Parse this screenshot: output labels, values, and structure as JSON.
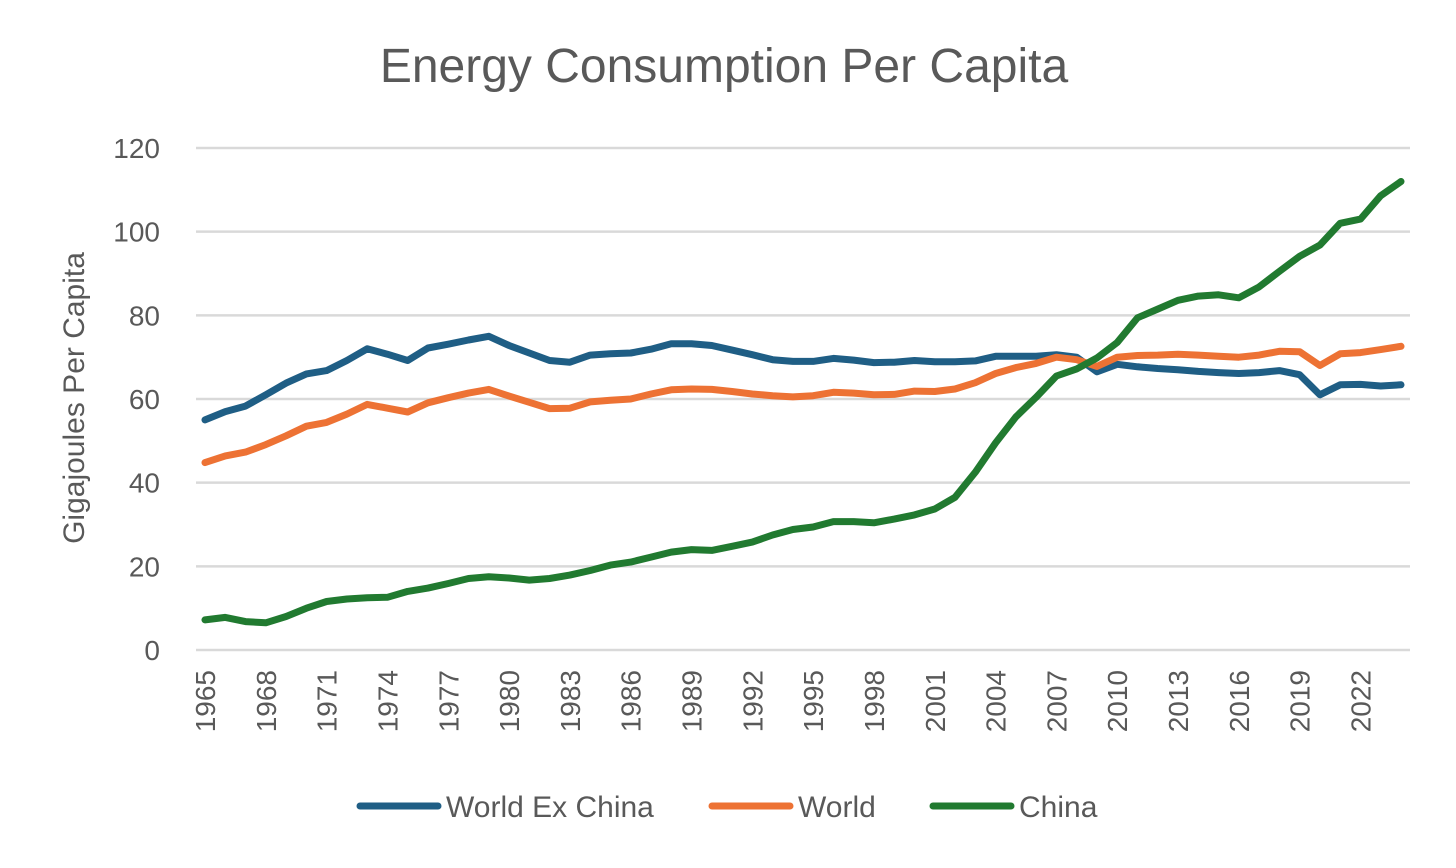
{
  "chart_data": {
    "type": "line",
    "title": "Energy Consumption Per Capita",
    "xlabel": "",
    "ylabel": "Gigajoules Per Capita",
    "ylim": [
      0,
      120
    ],
    "yticks": [
      "0",
      "20",
      "40",
      "60",
      "80",
      "100",
      "120"
    ],
    "grid": true,
    "legend_position": "bottom",
    "x": [
      1965,
      1966,
      1967,
      1968,
      1969,
      1970,
      1971,
      1972,
      1973,
      1974,
      1975,
      1976,
      1977,
      1978,
      1979,
      1980,
      1981,
      1982,
      1983,
      1984,
      1985,
      1986,
      1987,
      1988,
      1989,
      1990,
      1991,
      1992,
      1993,
      1994,
      1995,
      1996,
      1997,
      1998,
      1999,
      2000,
      2001,
      2002,
      2003,
      2004,
      2005,
      2006,
      2007,
      2008,
      2009,
      2010,
      2011,
      2012,
      2013,
      2014,
      2015,
      2016,
      2017,
      2018,
      2019,
      2020,
      2021,
      2022,
      2023,
      2024
    ],
    "xticks": [
      "1965",
      "1968",
      "1971",
      "1974",
      "1977",
      "1980",
      "1983",
      "1986",
      "1989",
      "1992",
      "1995",
      "1998",
      "2001",
      "2004",
      "2007",
      "2010",
      "2013",
      "2016",
      "2019",
      "2022"
    ],
    "series": [
      {
        "name": "World Ex China",
        "color": "#1f5e85",
        "values": [
          55,
          57,
          58.3,
          61,
          63.8,
          66,
          66.8,
          69.2,
          72,
          70.7,
          69.2,
          72.2,
          73.1,
          74.1,
          75,
          72.8,
          71,
          69.2,
          68.8,
          70.5,
          70.8,
          71,
          71.9,
          73.2,
          73.2,
          72.8,
          71.7,
          70.6,
          69.4,
          69,
          69,
          69.7,
          69.3,
          68.7,
          68.8,
          69.2,
          68.9,
          68.9,
          69.1,
          70.2,
          70.2,
          70.2,
          70.6,
          70,
          66.5,
          68.3,
          67.7,
          67.3,
          67,
          66.6,
          66.3,
          66.1,
          66.3,
          66.8,
          65.8,
          61,
          63.4,
          63.5,
          63.1,
          63.4
        ]
      },
      {
        "name": "World",
        "color": "#ed7234",
        "values": [
          44.8,
          46.4,
          47.3,
          49.1,
          51.2,
          53.5,
          54.4,
          56.4,
          58.7,
          57.8,
          56.9,
          59.1,
          60.3,
          61.4,
          62.3,
          60.7,
          59.2,
          57.7,
          57.8,
          59.3,
          59.7,
          60,
          61.2,
          62.2,
          62.4,
          62.3,
          61.8,
          61.2,
          60.8,
          60.5,
          60.8,
          61.6,
          61.4,
          61,
          61.1,
          61.9,
          61.8,
          62.4,
          63.9,
          66.1,
          67.5,
          68.5,
          70,
          69.4,
          67.8,
          70,
          70.4,
          70.5,
          70.7,
          70.5,
          70.2,
          70,
          70.5,
          71.4,
          71.3,
          68,
          70.8,
          71.1,
          71.8,
          72.6
        ]
      },
      {
        "name": "China",
        "color": "#217a30",
        "values": [
          7.2,
          7.8,
          6.8,
          6.5,
          8,
          10,
          11.6,
          12.2,
          12.5,
          12.6,
          14,
          14.8,
          15.9,
          17.1,
          17.5,
          17.2,
          16.7,
          17.1,
          17.9,
          19,
          20.3,
          21,
          22.2,
          23.4,
          24,
          23.8,
          24.8,
          25.8,
          27.5,
          28.8,
          29.4,
          30.7,
          30.7,
          30.4,
          31.3,
          32.3,
          33.7,
          36.5,
          42.5,
          49.5,
          55.7,
          60.4,
          65.5,
          67.2,
          69.8,
          73.5,
          79.4,
          81.5,
          83.6,
          84.6,
          84.9,
          84.2,
          86.8,
          90.5,
          94.1,
          96.8,
          102,
          103,
          108.6,
          112
        ]
      }
    ]
  }
}
